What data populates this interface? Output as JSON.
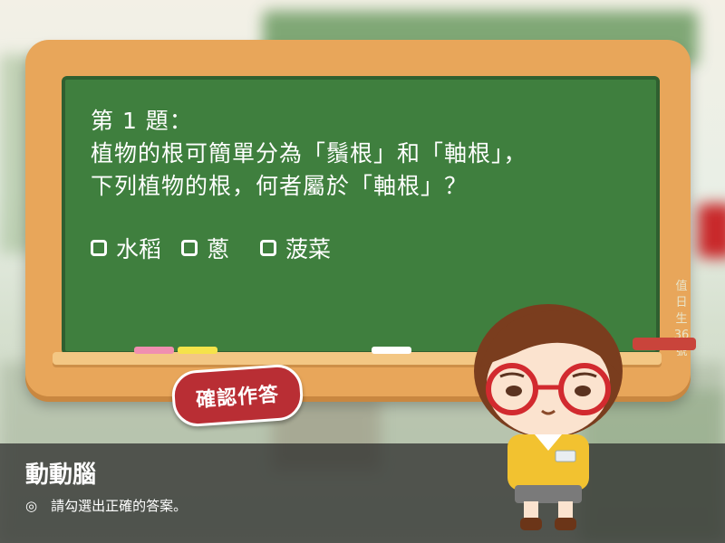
{
  "quiz": {
    "question_number": "第 1 題：",
    "question_line1": "植物的根可簡單分為「鬚根」和「軸根」，",
    "question_line2": "下列植物的根，何者屬於「軸根」？",
    "options": [
      {
        "label": "水稻"
      },
      {
        "label": "蔥"
      },
      {
        "label": "菠菜"
      }
    ],
    "duty_label": "值日生36號",
    "confirm_label": "確認作答"
  },
  "instruction": {
    "title": "動動腦",
    "text": "◎　請勾選出正確的答案。"
  },
  "colors": {
    "board": "#3f7f3e",
    "frame": "#e8a65a",
    "button": "#b92e34"
  }
}
